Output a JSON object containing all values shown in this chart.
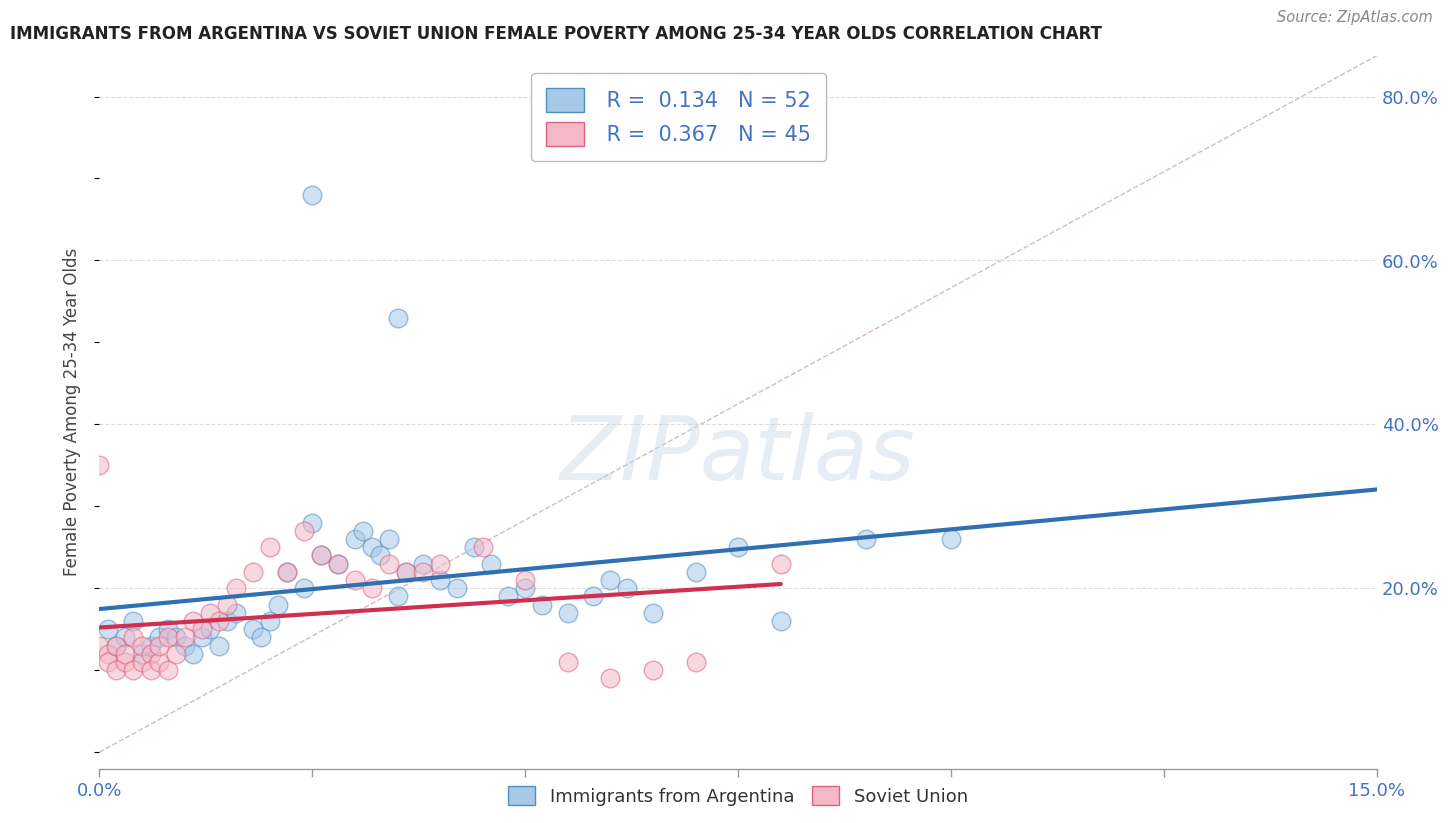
{
  "title": "IMMIGRANTS FROM ARGENTINA VS SOVIET UNION FEMALE POVERTY AMONG 25-34 YEAR OLDS CORRELATION CHART",
  "source": "Source: ZipAtlas.com",
  "ylabel": "Female Poverty Among 25-34 Year Olds",
  "xlim": [
    0.0,
    0.15
  ],
  "ylim": [
    -0.02,
    0.85
  ],
  "xtick_positions": [
    0.0,
    0.025,
    0.05,
    0.075,
    0.1,
    0.125,
    0.15
  ],
  "xtick_labels": [
    "0.0%",
    "",
    "",
    "",
    "",
    "",
    "15.0%"
  ],
  "yticks_right": [
    0.2,
    0.4,
    0.6,
    0.8
  ],
  "ytick_labels_right": [
    "20.0%",
    "40.0%",
    "60.0%",
    "80.0%"
  ],
  "argentina_R": 0.134,
  "argentina_N": 52,
  "soviet_R": 0.367,
  "soviet_N": 45,
  "argentina_color": "#a8c8e8",
  "soviet_color": "#f4b8c8",
  "argentina_line_color": "#3070b0",
  "soviet_line_color": "#d03050",
  "argentina_marker_edge": "#5090c0",
  "soviet_marker_edge": "#e06080",
  "watermark_text": "ZIPatlas",
  "grid_color": "#dddddd",
  "diag_color": "#ccaaaa",
  "background": "#ffffff",
  "title_color": "#222222",
  "axis_color": "#4472c4",
  "legend_border": "#bbbbbb"
}
